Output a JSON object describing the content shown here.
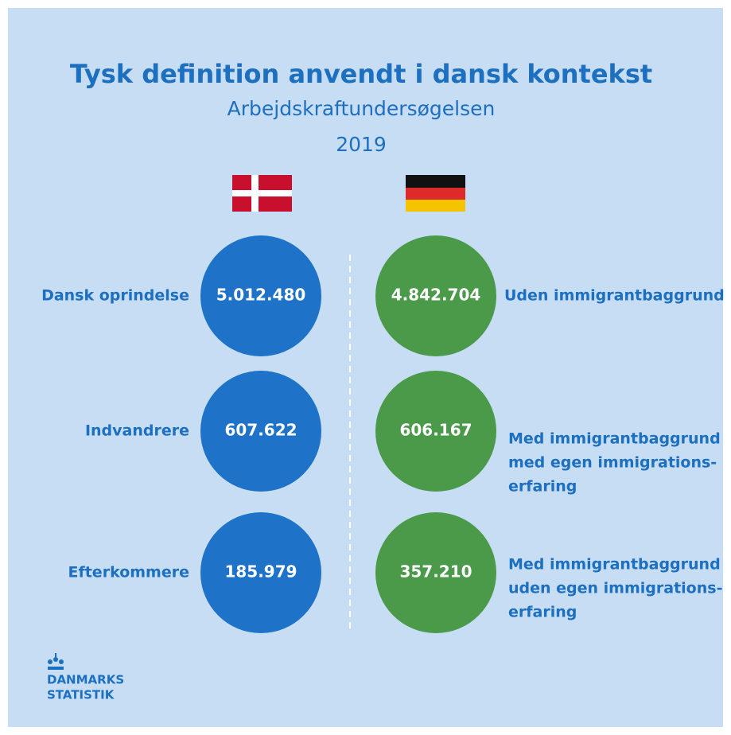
{
  "header": {
    "title": "Tysk definition anvendt i dansk kontekst",
    "subtitle": "Arbejdskraftundersøgelsen",
    "year": "2019"
  },
  "rows": [
    {
      "left_label": "Dansk oprindelse",
      "left_value": "5.012.480",
      "right_value": "4.842.704",
      "right_label": [
        "Uden immigrantbaggrund"
      ]
    },
    {
      "left_label": "Indvandrere",
      "left_value": "607.622",
      "right_value": "606.167",
      "right_label": [
        "Med immigrantbaggrund",
        "med egen immigrations-",
        "erfaring"
      ]
    },
    {
      "left_label": "Efterkommere",
      "left_value": "185.979",
      "right_value": "357.210",
      "right_label": [
        "Med immigrantbaggrund",
        "uden egen immigrations-",
        "erfaring"
      ]
    }
  ],
  "logo": [
    "DANMARKS",
    "STATISTIK"
  ]
}
